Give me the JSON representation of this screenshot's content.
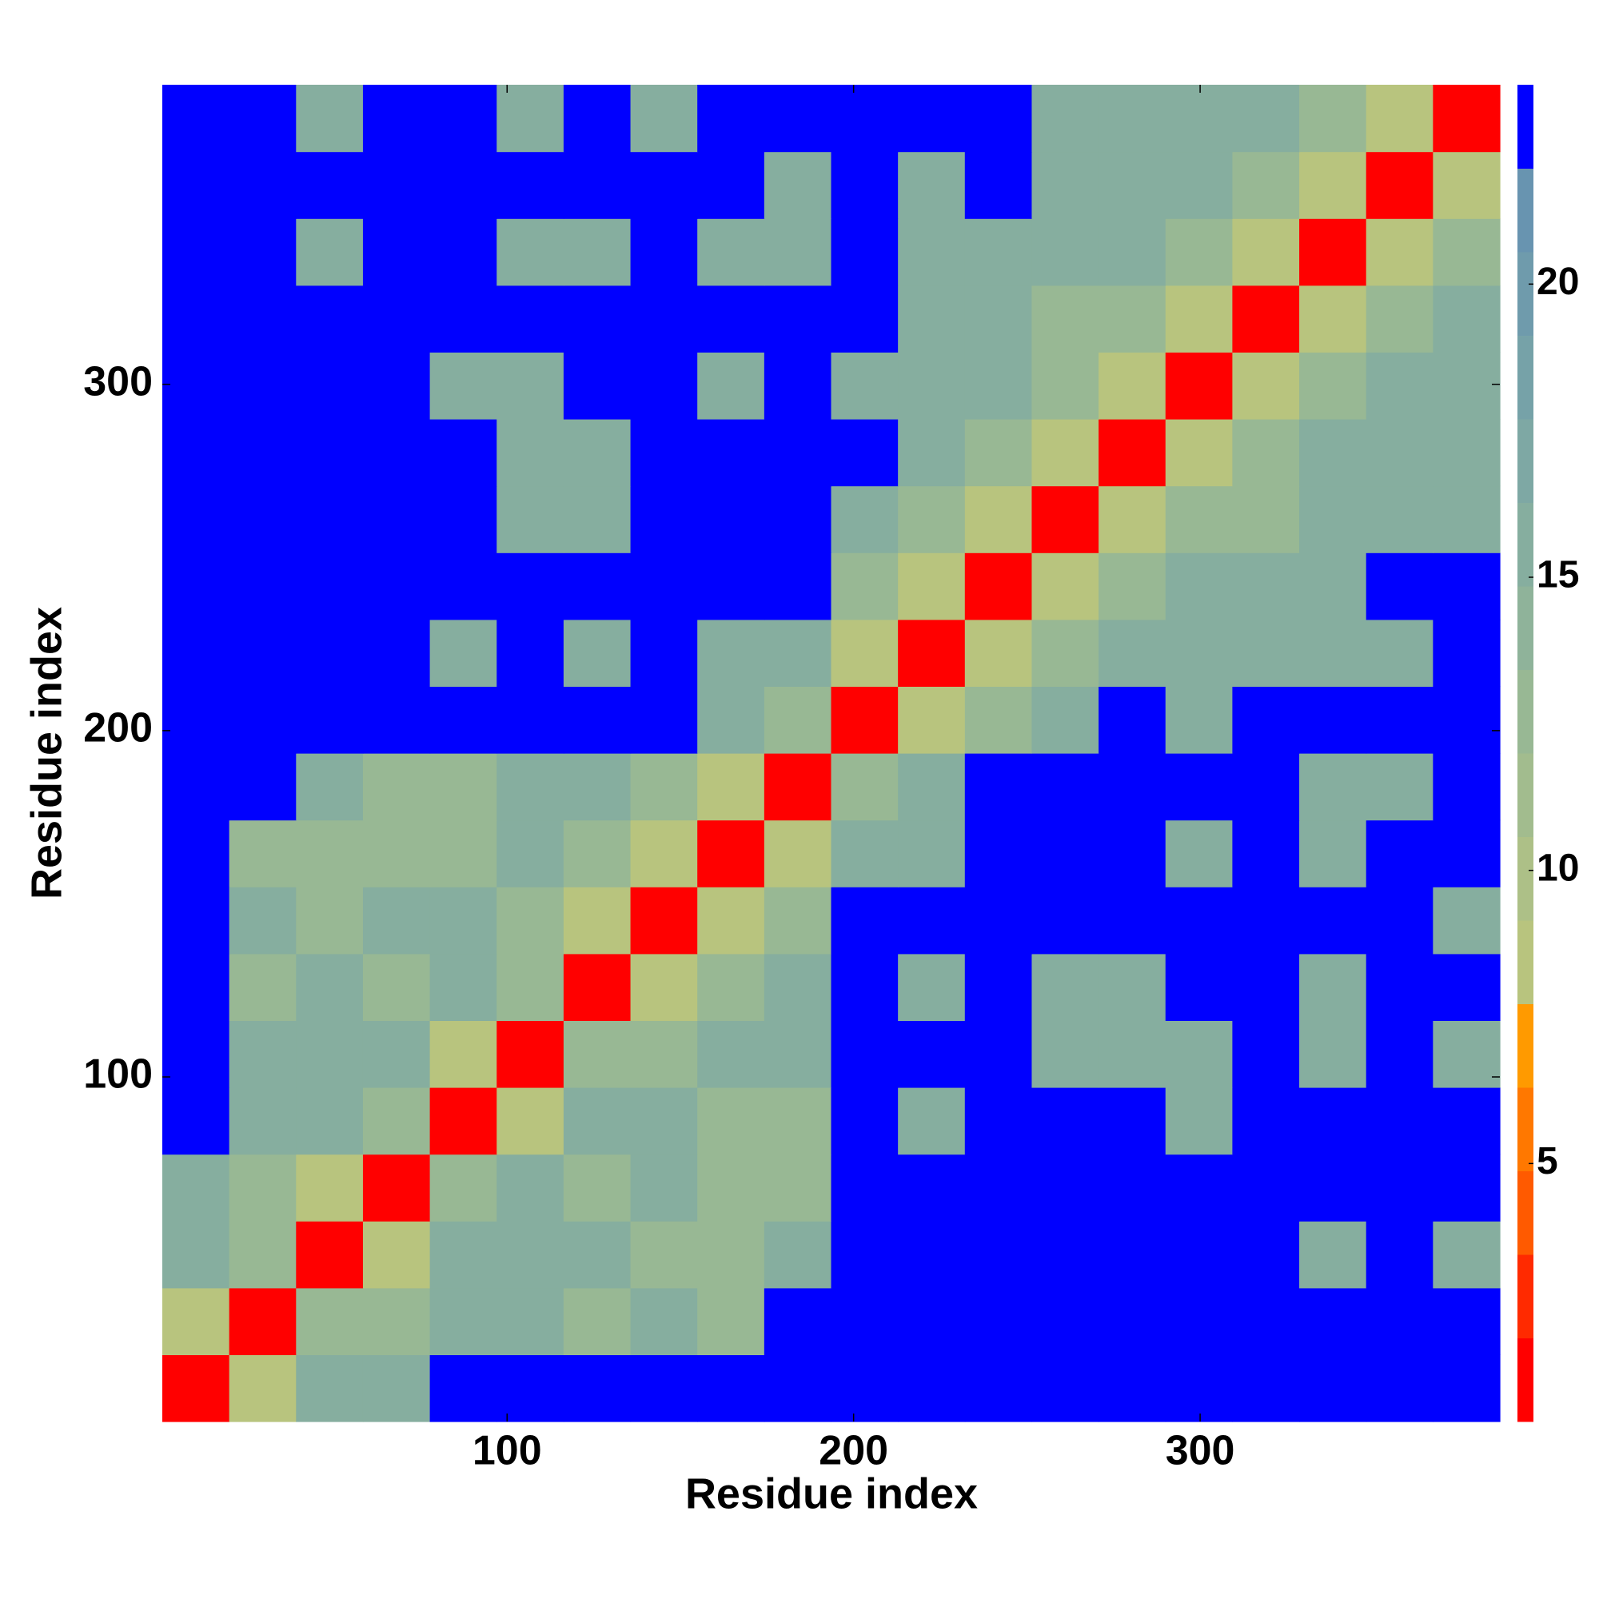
{
  "chart_data": {
    "type": "heatmap",
    "x_label": "Residue index",
    "y_label": "Residue index",
    "xlim": [
      0.5,
      386.5
    ],
    "ylim": [
      0.5,
      386.5
    ],
    "xticks": [
      100,
      200,
      300
    ],
    "yticks": [
      100,
      200,
      300
    ],
    "zlim": [
      0.6,
      23.4
    ],
    "zticks": [
      5,
      10,
      15,
      20
    ],
    "colors": [
      "#ff0000",
      "#ff2a00",
      "#ff5a00",
      "#ff7800",
      "#ff9a00",
      "#b8c47e",
      "#adc087",
      "#a2bc8e",
      "#98b894",
      "#8fb39a",
      "#86ae9f",
      "#7ea8a4",
      "#76a2a8",
      "#6f9bac",
      "#6894b0",
      "#0000ff"
    ],
    "z": [
      [
        2,
        8,
        16,
        16,
        23,
        23,
        23,
        23,
        23,
        23,
        23,
        23,
        23,
        23,
        23,
        23,
        23,
        23,
        23,
        23
      ],
      [
        8,
        2,
        12,
        12,
        16,
        16,
        12,
        16,
        12,
        23,
        23,
        23,
        23,
        23,
        23,
        23,
        23,
        23,
        23,
        23
      ],
      [
        16,
        12,
        2,
        8,
        16,
        16,
        16,
        12,
        12,
        16,
        23,
        23,
        23,
        23,
        23,
        23,
        23,
        16,
        23,
        16
      ],
      [
        16,
        12,
        8,
        2,
        12,
        16,
        12,
        16,
        12,
        12,
        23,
        23,
        23,
        23,
        23,
        23,
        23,
        23,
        23,
        23
      ],
      [
        23,
        16,
        16,
        12,
        2,
        8,
        16,
        16,
        12,
        12,
        23,
        16,
        23,
        23,
        23,
        16,
        23,
        23,
        23,
        23
      ],
      [
        23,
        16,
        16,
        16,
        8,
        2,
        12,
        12,
        16,
        16,
        23,
        23,
        23,
        16,
        16,
        16,
        23,
        16,
        23,
        16
      ],
      [
        23,
        12,
        16,
        12,
        16,
        12,
        2,
        8,
        12,
        16,
        23,
        16,
        23,
        16,
        16,
        23,
        23,
        16,
        23,
        23
      ],
      [
        23,
        16,
        12,
        16,
        16,
        12,
        8,
        2,
        8,
        12,
        23,
        23,
        23,
        23,
        23,
        23,
        23,
        23,
        23,
        16
      ],
      [
        23,
        12,
        12,
        12,
        12,
        16,
        12,
        8,
        2,
        8,
        16,
        16,
        23,
        23,
        23,
        16,
        23,
        16,
        23,
        23
      ],
      [
        23,
        23,
        16,
        12,
        12,
        16,
        16,
        12,
        8,
        2,
        12,
        16,
        23,
        23,
        23,
        23,
        23,
        16,
        16,
        23
      ],
      [
        23,
        23,
        23,
        23,
        23,
        23,
        23,
        23,
        16,
        12,
        2,
        8,
        12,
        16,
        23,
        16,
        23,
        23,
        23,
        23
      ],
      [
        23,
        23,
        23,
        23,
        16,
        23,
        16,
        23,
        16,
        16,
        8,
        2,
        8,
        12,
        16,
        16,
        16,
        16,
        16,
        23
      ],
      [
        23,
        23,
        23,
        23,
        23,
        23,
        23,
        23,
        23,
        23,
        12,
        8,
        2,
        8,
        12,
        16,
        16,
        16,
        23,
        23
      ],
      [
        23,
        23,
        23,
        23,
        23,
        16,
        16,
        23,
        23,
        23,
        16,
        12,
        8,
        2,
        8,
        12,
        12,
        16,
        16,
        16
      ],
      [
        23,
        23,
        23,
        23,
        23,
        16,
        16,
        23,
        23,
        23,
        23,
        16,
        12,
        8,
        2,
        8,
        12,
        16,
        16,
        16
      ],
      [
        23,
        23,
        23,
        23,
        16,
        16,
        23,
        23,
        16,
        23,
        16,
        16,
        16,
        12,
        8,
        2,
        8,
        12,
        16,
        16
      ],
      [
        23,
        23,
        23,
        23,
        23,
        23,
        23,
        23,
        23,
        23,
        23,
        16,
        16,
        12,
        12,
        8,
        2,
        8,
        12,
        16
      ],
      [
        23,
        23,
        16,
        23,
        23,
        16,
        16,
        23,
        16,
        16,
        23,
        16,
        16,
        16,
        16,
        12,
        8,
        2,
        8,
        12
      ],
      [
        23,
        23,
        23,
        23,
        23,
        23,
        23,
        23,
        23,
        16,
        23,
        16,
        23,
        16,
        16,
        16,
        12,
        8,
        2,
        8
      ],
      [
        23,
        23,
        16,
        23,
        23,
        16,
        23,
        16,
        23,
        23,
        23,
        23,
        23,
        16,
        16,
        16,
        16,
        12,
        8,
        2
      ]
    ]
  }
}
